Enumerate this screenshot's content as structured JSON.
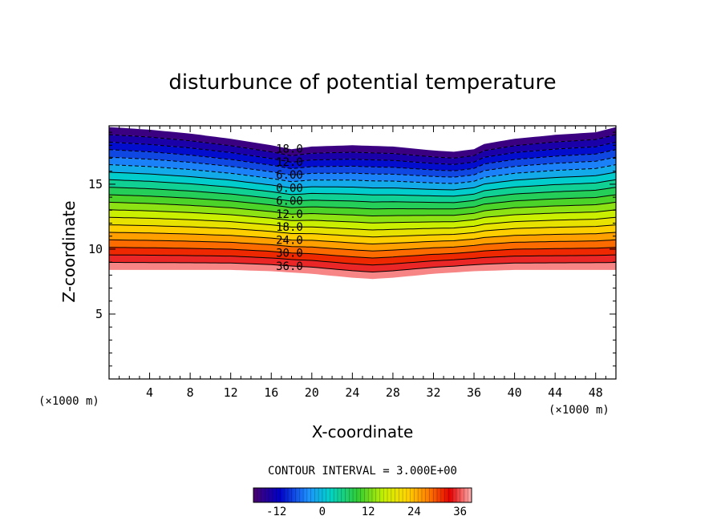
{
  "chart_data": {
    "type": "contour",
    "title": "disturbunce of potential temperature",
    "xlabel": "X-coordinate",
    "ylabel": "Z-coordinate",
    "x_unit": "(×1000 m)",
    "y_unit": "(×1000 m)",
    "xlim": [
      0,
      50
    ],
    "ylim": [
      0,
      19.5
    ],
    "xticks": [
      4,
      8,
      12,
      16,
      20,
      24,
      28,
      32,
      36,
      40,
      44,
      48
    ],
    "yticks": [
      5,
      10,
      15
    ],
    "contour_interval_label": "CONTOUR INTERVAL = 3.000E+00",
    "contour_labels": [
      "18.0",
      "12.0",
      "6.00",
      "0.00",
      "6.00",
      "12.0",
      "18.0",
      "24.0",
      "30.0",
      "36.0"
    ],
    "colorbar": {
      "min": -18,
      "max": 39,
      "ticks": [
        "-12",
        "0",
        "12",
        "24",
        "36"
      ]
    },
    "top_boundary": {
      "x": [
        0,
        4,
        8,
        12,
        16,
        18,
        20,
        24,
        28,
        32,
        34,
        36,
        37,
        40,
        44,
        48,
        50
      ],
      "z": [
        19.4,
        19.2,
        18.9,
        18.5,
        18.0,
        17.7,
        17.9,
        18.0,
        17.9,
        17.6,
        17.5,
        17.7,
        18.1,
        18.5,
        18.8,
        19.0,
        19.4
      ]
    },
    "bottom_boundary": {
      "x": [
        0,
        4,
        8,
        12,
        16,
        20,
        24,
        26,
        28,
        32,
        36,
        40,
        44,
        48,
        50
      ],
      "z": [
        8.4,
        8.4,
        8.4,
        8.4,
        8.3,
        8.1,
        7.8,
        7.7,
        7.8,
        8.1,
        8.3,
        8.4,
        8.4,
        8.4,
        8.4
      ]
    }
  }
}
